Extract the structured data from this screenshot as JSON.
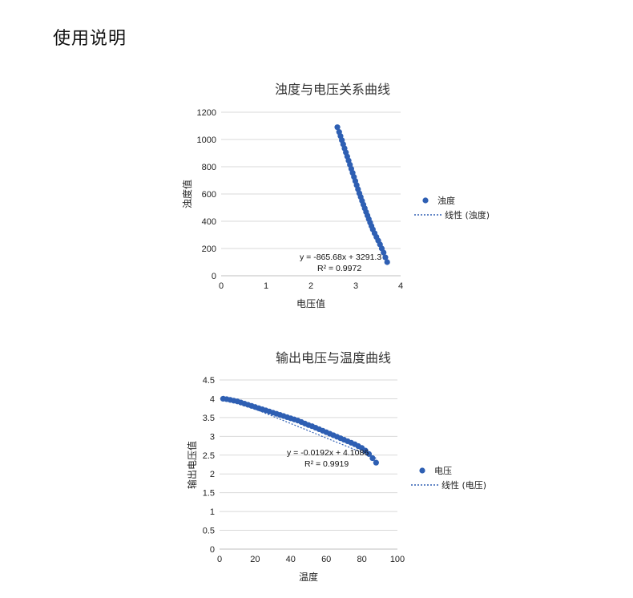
{
  "page": {
    "heading": "使用说明"
  },
  "chart_data": [
    {
      "type": "scatter",
      "title": "浊度与电压关系曲线",
      "xlabel": "电压值",
      "ylabel": "浊度值",
      "xlim": [
        0,
        4
      ],
      "ylim": [
        0,
        1200
      ],
      "xticks": [
        "0",
        "1",
        "2",
        "3",
        "4"
      ],
      "yticks": [
        "0",
        "200",
        "400",
        "600",
        "800",
        "1000",
        "1200"
      ],
      "grid": true,
      "legend_position": "right",
      "trendline_equation": "y = -865.68x + 3291.3",
      "r_squared": "R² = 0.9972",
      "trendline": {
        "slope": -865.68,
        "intercept": 3291.3
      },
      "series": [
        {
          "name": "浊度",
          "color": "#2e5fb3",
          "x": [
            2.59,
            2.63,
            2.66,
            2.69,
            2.72,
            2.75,
            2.78,
            2.81,
            2.84,
            2.87,
            2.9,
            2.93,
            2.96,
            2.99,
            3.02,
            3.05,
            3.08,
            3.11,
            3.14,
            3.17,
            3.2,
            3.23,
            3.26,
            3.29,
            3.32,
            3.35,
            3.38,
            3.42,
            3.46,
            3.5,
            3.54,
            3.58,
            3.62,
            3.66,
            3.7
          ],
          "y": [
            1090,
            1055,
            1025,
            995,
            965,
            935,
            905,
            875,
            845,
            815,
            785,
            755,
            725,
            695,
            665,
            635,
            605,
            578,
            550,
            522,
            495,
            468,
            442,
            416,
            390,
            365,
            340,
            312,
            285,
            258,
            230,
            200,
            170,
            135,
            100
          ]
        }
      ],
      "trendline_legend": "线性 (浊度)"
    },
    {
      "type": "scatter",
      "title": "输出电压与温度曲线",
      "xlabel": "温度",
      "ylabel": "输出电压值",
      "xlim": [
        0,
        100
      ],
      "ylim": [
        0,
        4.5
      ],
      "xticks": [
        "0",
        "20",
        "40",
        "60",
        "80",
        "100"
      ],
      "yticks": [
        "0",
        "0.5",
        "1",
        "1.5",
        "2",
        "2.5",
        "3",
        "3.5",
        "4",
        "4.5"
      ],
      "grid": true,
      "legend_position": "right",
      "trendline_equation": "y = -0.0192x + 4.1086",
      "r_squared": "R² = 0.9919",
      "trendline": {
        "slope": -0.0192,
        "intercept": 4.1086
      },
      "series": [
        {
          "name": "电压",
          "color": "#2e5fb3",
          "x": [
            2,
            4,
            6,
            8,
            10,
            12,
            14,
            16,
            18,
            20,
            22,
            24,
            26,
            28,
            30,
            32,
            34,
            36,
            38,
            40,
            42,
            44,
            46,
            48,
            50,
            52,
            54,
            56,
            58,
            60,
            62,
            64,
            66,
            68,
            70,
            72,
            74,
            76,
            78,
            80,
            82,
            84,
            86,
            88
          ],
          "y": [
            4.0,
            3.99,
            3.97,
            3.95,
            3.93,
            3.9,
            3.87,
            3.84,
            3.81,
            3.78,
            3.75,
            3.72,
            3.69,
            3.66,
            3.63,
            3.6,
            3.57,
            3.54,
            3.51,
            3.48,
            3.45,
            3.42,
            3.38,
            3.34,
            3.3,
            3.27,
            3.23,
            3.19,
            3.15,
            3.11,
            3.07,
            3.03,
            2.99,
            2.95,
            2.91,
            2.87,
            2.83,
            2.79,
            2.74,
            2.69,
            2.62,
            2.53,
            2.42,
            2.3
          ]
        }
      ],
      "trendline_legend": "线性 (电压)"
    }
  ]
}
